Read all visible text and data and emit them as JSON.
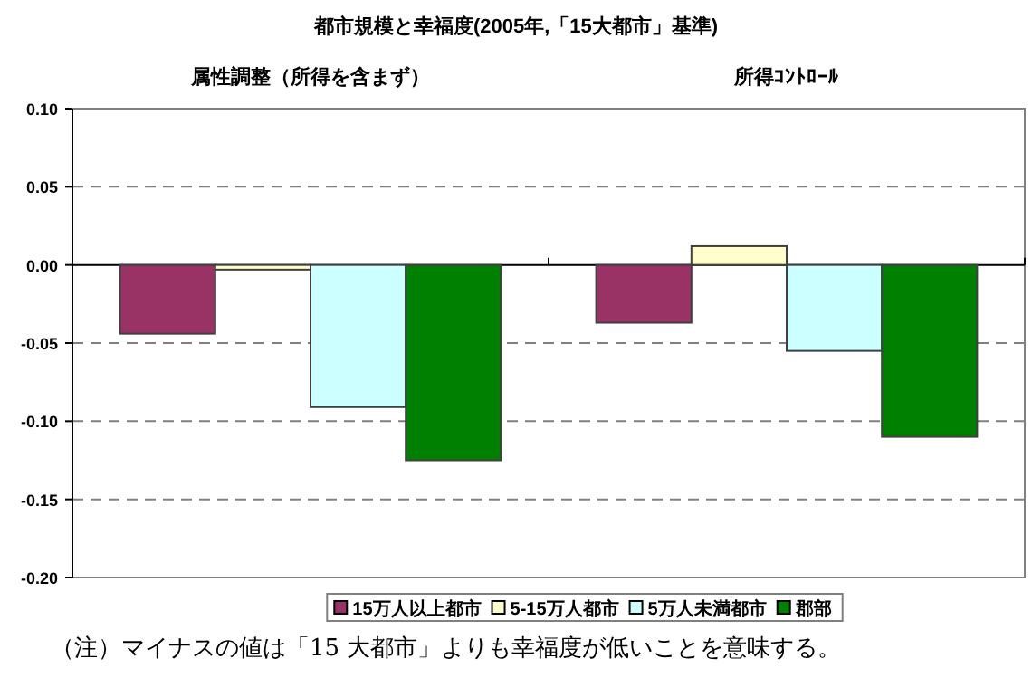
{
  "chart_data": {
    "type": "bar",
    "title": "都市規模と幸福度(2005年,「15大都市」基準)",
    "categories": [
      "属性調整（所得を含まず）",
      "所得ｺﾝﾄﾛｰﾙ"
    ],
    "series": [
      {
        "name": "15万人以上都市",
        "color": "#993366",
        "values": [
          -0.044,
          -0.037
        ]
      },
      {
        "name": "5-15万人都市",
        "color": "#ffffcc",
        "values": [
          -0.003,
          0.012
        ]
      },
      {
        "name": "5万人未満都市",
        "color": "#ccffff",
        "values": [
          -0.091,
          -0.055
        ]
      },
      {
        "name": "郡部",
        "color": "#008000",
        "values": [
          -0.125,
          -0.11
        ]
      }
    ],
    "ylim": [
      -0.2,
      0.1
    ],
    "yticks": [
      {
        "value": -0.2,
        "label": "-0.20"
      },
      {
        "value": -0.15,
        "label": "-0.15"
      },
      {
        "value": -0.1,
        "label": "-0.10"
      },
      {
        "value": -0.05,
        "label": "-0.05"
      },
      {
        "value": 0,
        "label": "0.00"
      },
      {
        "value": 0.05,
        "label": "0.05"
      },
      {
        "value": 0.1,
        "label": "0.10"
      }
    ],
    "grid": "y",
    "legend": "bottom",
    "annotations": [
      "（注）マイナスの値は「15 大都市」よりも幸福度が低いことを意味する。"
    ]
  }
}
